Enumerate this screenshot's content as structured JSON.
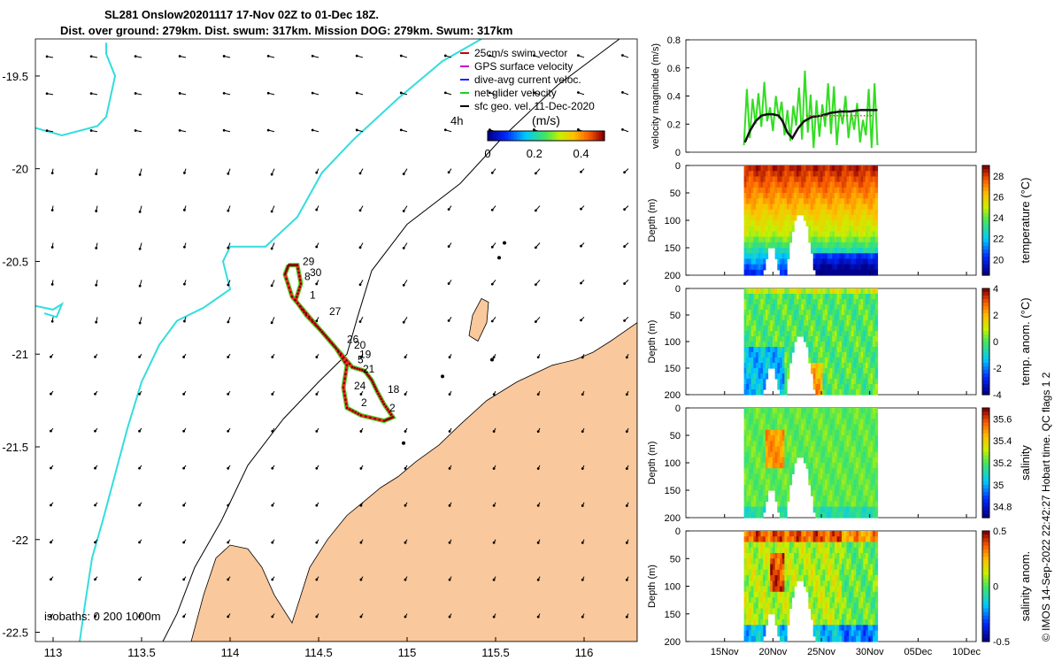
{
  "titles": {
    "line1": "SL281 Onslow20201117 17-Nov 02Z to 01-Dec 18Z.",
    "line2": "Dist. over ground: 279km. Dist. swum: 317km. Mission DOG: 279km. Swum: 317km"
  },
  "credit": "© IMOS 14-Sep-2022 22:42:27 Hobart time. QC flags 1  2",
  "colors": {
    "land": "#f9c89c",
    "coast_cyan": "#33dddd",
    "track": "#ff2222",
    "line_green": "#33dd22",
    "line_black": "#111111"
  },
  "chart_data": [
    {
      "type": "scatter",
      "name": "map",
      "xlim": [
        112.9,
        116.3
      ],
      "ylim": [
        -22.55,
        -19.3
      ],
      "x_ticks": [
        "113",
        "113.5",
        "114",
        "114.5",
        "115",
        "115.5",
        "116"
      ],
      "y_ticks": [
        "-19.5",
        "-20",
        "-20.5",
        "-21",
        "-21.5",
        "-22",
        "-22.5"
      ],
      "legend": [
        {
          "label": "25cm/s swim vector",
          "color": "#cc0000"
        },
        {
          "label": "GPS surface velocity",
          "color": "#cc00cc"
        },
        {
          "label": "dive-avg current veloc.",
          "color": "#2222ff"
        },
        {
          "label": "net glider velocity",
          "color": "#22cc22"
        },
        {
          "label": "sfc geo. vel. 11-Dec-2020",
          "color": "#000000"
        }
      ],
      "time_label": "4h",
      "colorbar": {
        "label": "(m/s)",
        "ticks": [
          "0",
          "0.2",
          "0.4"
        ],
        "range": [
          0,
          0.5
        ]
      },
      "isobaths_label": "isobaths: 0   200  1000m",
      "track": [
        [
          114.33,
          -20.52
        ],
        [
          114.38,
          -20.52
        ],
        [
          114.4,
          -20.62
        ],
        [
          114.37,
          -20.71
        ],
        [
          114.43,
          -20.79
        ],
        [
          114.52,
          -20.88
        ],
        [
          114.61,
          -20.98
        ],
        [
          114.69,
          -21.07
        ],
        [
          114.76,
          -21.09
        ],
        [
          114.8,
          -21.14
        ],
        [
          114.83,
          -21.2
        ],
        [
          114.87,
          -21.27
        ],
        [
          114.92,
          -21.34
        ],
        [
          114.87,
          -21.36
        ],
        [
          114.74,
          -21.33
        ],
        [
          114.66,
          -21.29
        ],
        [
          114.64,
          -21.18
        ],
        [
          114.66,
          -21.06
        ],
        [
          114.6,
          -20.97
        ],
        [
          114.51,
          -20.87
        ],
        [
          114.43,
          -20.78
        ],
        [
          114.35,
          -20.69
        ],
        [
          114.31,
          -20.57
        ],
        [
          114.33,
          -20.52
        ]
      ],
      "day_labels": [
        {
          "t": "29",
          "x": 114.41,
          "y": -20.52
        },
        {
          "t": "30",
          "x": 114.45,
          "y": -20.58
        },
        {
          "t": "8",
          "x": 114.42,
          "y": -20.6
        },
        {
          "t": "1",
          "x": 114.45,
          "y": -20.7
        },
        {
          "t": "27",
          "x": 114.56,
          "y": -20.79
        },
        {
          "t": "26",
          "x": 114.66,
          "y": -20.94
        },
        {
          "t": "20",
          "x": 114.7,
          "y": -20.97
        },
        {
          "t": "19",
          "x": 114.73,
          "y": -21.02
        },
        {
          "t": "5",
          "x": 114.72,
          "y": -21.05
        },
        {
          "t": "21",
          "x": 114.75,
          "y": -21.1
        },
        {
          "t": "24",
          "x": 114.7,
          "y": -21.19
        },
        {
          "t": "18",
          "x": 114.89,
          "y": -21.21
        },
        {
          "t": "2",
          "x": 114.74,
          "y": -21.28
        },
        {
          "t": "2",
          "x": 114.9,
          "y": -21.31
        }
      ]
    },
    {
      "type": "line",
      "name": "velocity",
      "ylabel": "velocity magnitude (m/s)",
      "ylim": [
        0,
        0.8
      ],
      "y_ticks": [
        "0",
        "0.2",
        "0.4",
        "0.6",
        "0.8"
      ],
      "xlim": [
        11,
        41
      ],
      "x_ticks": [
        {
          "v": 15,
          "label": "15Nov"
        },
        {
          "v": 20,
          "label": "20Nov"
        },
        {
          "v": 25,
          "label": "25Nov"
        },
        {
          "v": 30,
          "label": "30Nov"
        },
        {
          "v": 35,
          "label": "05Dec"
        },
        {
          "v": 40,
          "label": "10Dec"
        }
      ],
      "series_black": {
        "x": [
          17.1,
          17.6,
          18.2,
          18.8,
          19.4,
          20.0,
          20.6,
          21.0,
          21.5,
          22.0,
          22.6,
          23.2,
          24.0,
          25.0,
          26.0,
          27.0,
          28.0,
          29.0,
          30.0,
          30.8
        ],
        "y": [
          0.07,
          0.15,
          0.22,
          0.26,
          0.27,
          0.27,
          0.26,
          0.22,
          0.14,
          0.1,
          0.17,
          0.22,
          0.25,
          0.26,
          0.28,
          0.29,
          0.29,
          0.3,
          0.3,
          0.3
        ]
      },
      "series_green": {
        "x": [
          17.0,
          17.3,
          17.6,
          17.9,
          18.2,
          18.5,
          18.8,
          19.1,
          19.4,
          19.7,
          20.0,
          20.3,
          20.6,
          20.9,
          21.2,
          21.5,
          21.8,
          22.1,
          22.4,
          22.7,
          23.0,
          23.3,
          23.6,
          23.9,
          24.2,
          24.5,
          24.8,
          25.1,
          25.4,
          25.7,
          26.0,
          26.3,
          26.6,
          26.9,
          27.2,
          27.5,
          27.8,
          28.1,
          28.4,
          28.7,
          29.0,
          29.3,
          29.6,
          29.9,
          30.2,
          30.5,
          30.8
        ],
        "y": [
          0.05,
          0.45,
          0.1,
          0.38,
          0.2,
          0.42,
          0.18,
          0.5,
          0.22,
          0.32,
          0.15,
          0.4,
          0.24,
          0.36,
          0.12,
          0.3,
          0.08,
          0.33,
          0.19,
          0.46,
          0.09,
          0.58,
          0.14,
          0.41,
          0.03,
          0.37,
          0.11,
          0.34,
          0.18,
          0.49,
          0.13,
          0.47,
          0.05,
          0.31,
          0.2,
          0.4,
          0.1,
          0.28,
          0.16,
          0.35,
          0.07,
          0.23,
          0.12,
          0.45,
          0.03,
          0.49,
          0.05
        ]
      }
    },
    {
      "type": "heatmap",
      "name": "temperature",
      "ylabel": "Depth (m)",
      "ylim": [
        0,
        200
      ],
      "y_ticks": [
        "0",
        "50",
        "100",
        "150",
        "200"
      ],
      "colorbar_label": "temperature (°C)",
      "clim": [
        18.5,
        29
      ],
      "colorbar_ticks": [
        {
          "v": 20,
          "label": "20"
        },
        {
          "v": 22,
          "label": "22"
        },
        {
          "v": 24,
          "label": "24"
        },
        {
          "v": 26,
          "label": "26"
        },
        {
          "v": 28,
          "label": "28"
        }
      ]
    },
    {
      "type": "heatmap",
      "name": "temp_anom",
      "ylabel": "Depth (m)",
      "ylim": [
        0,
        200
      ],
      "y_ticks": [
        "0",
        "50",
        "100",
        "150",
        "200"
      ],
      "colorbar_label": "temp. anom. (°C)",
      "clim": [
        -4,
        4
      ],
      "colorbar_ticks": [
        {
          "v": -4,
          "label": "-4"
        },
        {
          "v": -2,
          "label": "-2"
        },
        {
          "v": 0,
          "label": "0"
        },
        {
          "v": 2,
          "label": "2"
        },
        {
          "v": 4,
          "label": "4"
        }
      ]
    },
    {
      "type": "heatmap",
      "name": "salinity",
      "ylabel": "Depth (m)",
      "ylim": [
        0,
        200
      ],
      "y_ticks": [
        "0",
        "50",
        "100",
        "150",
        "200"
      ],
      "colorbar_label": "salinity",
      "clim": [
        34.7,
        35.7
      ],
      "colorbar_ticks": [
        {
          "v": 34.8,
          "label": "34.8"
        },
        {
          "v": 35.0,
          "label": "35"
        },
        {
          "v": 35.2,
          "label": "35.2"
        },
        {
          "v": 35.4,
          "label": "35.4"
        },
        {
          "v": 35.6,
          "label": "35.6"
        }
      ]
    },
    {
      "type": "heatmap",
      "name": "sal_anom",
      "ylabel": "Depth (m)",
      "ylim": [
        0,
        200
      ],
      "y_ticks": [
        "0",
        "50",
        "100",
        "150",
        "200"
      ],
      "colorbar_label": "salinity anom.",
      "clim": [
        -0.5,
        0.5
      ],
      "colorbar_ticks": [
        {
          "v": -0.5,
          "label": "-0.5"
        },
        {
          "v": 0,
          "label": "0"
        },
        {
          "v": 0.5,
          "label": "0.5"
        }
      ]
    }
  ]
}
